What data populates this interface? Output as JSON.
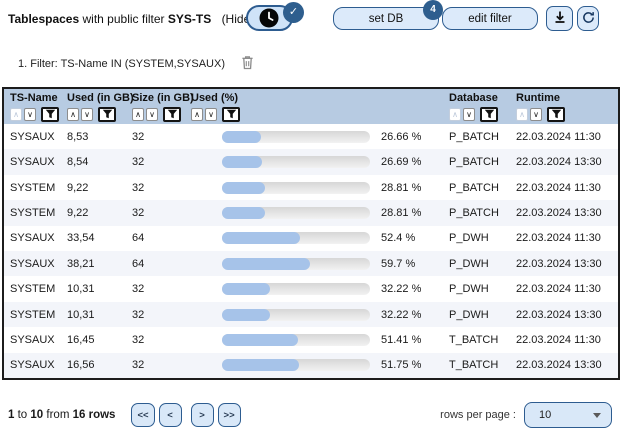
{
  "header": {
    "title_bold": "Tablespaces",
    "title_rest": "with public filter",
    "public_filter_name": "SYS-TS",
    "hide_link": "(Hide)",
    "set_db": {
      "label": "set DB",
      "badge": "4"
    },
    "edit_filter": {
      "label": "edit filter"
    }
  },
  "filter_bar": {
    "text": "1. Filter: TS-Name IN (SYSTEM,SYSAUX)"
  },
  "icons": {
    "check": "✓",
    "sort_up": "∧",
    "sort_down": "∨"
  },
  "table": {
    "columns": [
      {
        "label": "TS-Name",
        "up_disabled": true
      },
      {
        "label": "Used (in GB)",
        "up_disabled": false
      },
      {
        "label": "Size (in GB)",
        "up_disabled": false
      },
      {
        "label": "Used (%)",
        "up_disabled": false
      },
      {
        "label": "Database",
        "up_disabled": true
      },
      {
        "label": "Runtime",
        "up_disabled": true
      }
    ],
    "rows": [
      {
        "ts_name": "SYSAUX",
        "used_gb": "8,53",
        "size_gb": "32",
        "used_pct": 26.66,
        "used_pct_label": "26.66 %",
        "database": "P_BATCH",
        "runtime": "22.03.2024 11:30"
      },
      {
        "ts_name": "SYSAUX",
        "used_gb": "8,54",
        "size_gb": "32",
        "used_pct": 26.69,
        "used_pct_label": "26.69 %",
        "database": "P_BATCH",
        "runtime": "22.03.2024 13:30"
      },
      {
        "ts_name": "SYSTEM",
        "used_gb": "9,22",
        "size_gb": "32",
        "used_pct": 28.81,
        "used_pct_label": "28.81 %",
        "database": "P_BATCH",
        "runtime": "22.03.2024 11:30"
      },
      {
        "ts_name": "SYSTEM",
        "used_gb": "9,22",
        "size_gb": "32",
        "used_pct": 28.81,
        "used_pct_label": "28.81 %",
        "database": "P_BATCH",
        "runtime": "22.03.2024 13:30"
      },
      {
        "ts_name": "SYSAUX",
        "used_gb": "33,54",
        "size_gb": "64",
        "used_pct": 52.4,
        "used_pct_label": "52.4 %",
        "database": "P_DWH",
        "runtime": "22.03.2024 11:30"
      },
      {
        "ts_name": "SYSAUX",
        "used_gb": "38,21",
        "size_gb": "64",
        "used_pct": 59.7,
        "used_pct_label": "59.7 %",
        "database": "P_DWH",
        "runtime": "22.03.2024 13:30"
      },
      {
        "ts_name": "SYSTEM",
        "used_gb": "10,31",
        "size_gb": "32",
        "used_pct": 32.22,
        "used_pct_label": "32.22 %",
        "database": "P_DWH",
        "runtime": "22.03.2024 11:30"
      },
      {
        "ts_name": "SYSTEM",
        "used_gb": "10,31",
        "size_gb": "32",
        "used_pct": 32.22,
        "used_pct_label": "32.22 %",
        "database": "P_DWH",
        "runtime": "22.03.2024 13:30"
      },
      {
        "ts_name": "SYSAUX",
        "used_gb": "16,45",
        "size_gb": "32",
        "used_pct": 51.41,
        "used_pct_label": "51.41 %",
        "database": "T_BATCH",
        "runtime": "22.03.2024 11:30"
      },
      {
        "ts_name": "SYSAUX",
        "used_gb": "16,56",
        "size_gb": "32",
        "used_pct": 51.75,
        "used_pct_label": "51.75 %",
        "database": "T_BATCH",
        "runtime": "22.03.2024 13:30"
      }
    ]
  },
  "footer": {
    "range": {
      "start": "1",
      "word_to": "to",
      "end": "10",
      "word_from": "from",
      "total": "16 rows"
    },
    "pagination": [
      "<<",
      "<",
      ">",
      ">>"
    ],
    "rows_per_page_label": "rows per page :",
    "rows_per_page_value": "10"
  },
  "colors": {
    "header_bg": "#b7cbe2",
    "accent_border": "#2d5c90",
    "button_bg": "#dceafa",
    "badge_bg": "#2e5e8e",
    "bar_fill": "#a6c3e9",
    "bar_track": "#e3e3e3",
    "row_alt": "#f3f5fa"
  }
}
